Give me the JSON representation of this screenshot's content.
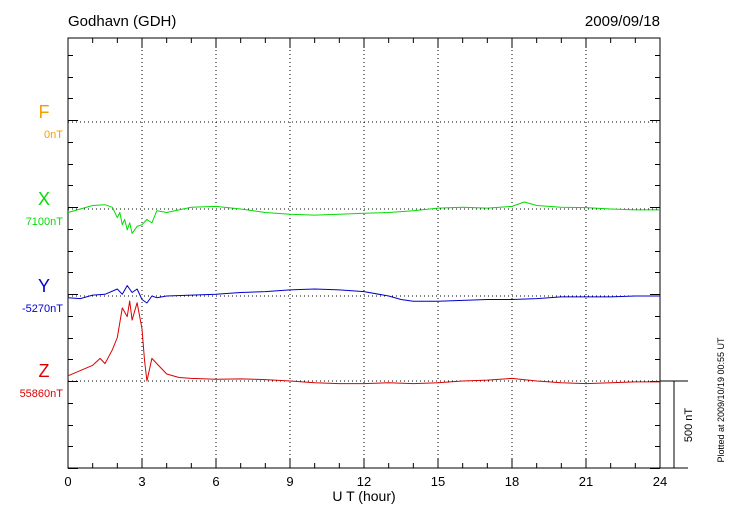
{
  "header": {
    "station": "Godhavn (GDH)",
    "date": "2009/09/18"
  },
  "footer": {
    "plotted": "Plotted at 2009/10/19 00:55 UT"
  },
  "scale": {
    "label": "500 nT",
    "value_nT": 500
  },
  "colors": {
    "F": "#f0a000",
    "X": "#00dd00",
    "Y": "#0000cc",
    "Z": "#dd0000",
    "grid": "#000000"
  },
  "chart_data": {
    "type": "line",
    "xlabel": "U T (hour)",
    "xlim": [
      0,
      24
    ],
    "x_ticks": [
      0,
      3,
      6,
      9,
      12,
      15,
      18,
      21,
      24
    ],
    "x_tick_labels": [
      "0",
      "3",
      "6",
      "9",
      "12",
      "15",
      "18",
      "21",
      "24"
    ],
    "baselines": [
      {
        "component": "F",
        "letter": "F",
        "baseline_label": "0nT"
      },
      {
        "component": "X",
        "letter": "X",
        "baseline_label": "7100nT"
      },
      {
        "component": "Y",
        "letter": "Y",
        "baseline_label": "-5270nT"
      },
      {
        "component": "Z",
        "letter": "Z",
        "baseline_label": "55860nT"
      }
    ],
    "series": [
      {
        "component": "X",
        "x": [
          0,
          0.5,
          1.0,
          1.5,
          1.8,
          2.0,
          2.1,
          2.2,
          2.3,
          2.4,
          2.5,
          2.6,
          2.8,
          3.0,
          3.2,
          3.4,
          3.6,
          4.0,
          5.0,
          6.0,
          7.0,
          8.0,
          9.0,
          10.0,
          11.0,
          12.0,
          13.0,
          14.0,
          15.0,
          16.0,
          17.0,
          18.0,
          18.5,
          19.0,
          20.0,
          21.0,
          22.0,
          23.0,
          24.0
        ],
        "values": [
          -20,
          0,
          20,
          25,
          10,
          -50,
          -20,
          -90,
          -60,
          -120,
          -80,
          -140,
          -100,
          -90,
          -60,
          -80,
          -10,
          -20,
          10,
          15,
          0,
          -20,
          -30,
          -35,
          -30,
          -25,
          -20,
          -10,
          5,
          10,
          5,
          15,
          40,
          20,
          10,
          8,
          0,
          -5,
          -5
        ]
      },
      {
        "component": "Y",
        "x": [
          0,
          0.5,
          1.0,
          1.5,
          2.0,
          2.2,
          2.4,
          2.6,
          2.8,
          3.0,
          3.2,
          3.4,
          3.6,
          4.0,
          5.0,
          6.0,
          7.0,
          8.0,
          9.0,
          10.0,
          11.0,
          12.0,
          13.0,
          13.5,
          14.0,
          15.0,
          16.0,
          17.0,
          18.0,
          19.0,
          20.0,
          21.0,
          22.0,
          23.0,
          24.0
        ],
        "values": [
          -10,
          -15,
          5,
          10,
          40,
          10,
          60,
          20,
          40,
          -20,
          -40,
          0,
          -10,
          0,
          5,
          10,
          20,
          25,
          35,
          40,
          35,
          25,
          0,
          -20,
          -30,
          -30,
          -25,
          -20,
          -20,
          -15,
          -5,
          -5,
          -5,
          0,
          0
        ]
      },
      {
        "component": "Z",
        "x": [
          0,
          0.5,
          1.0,
          1.3,
          1.5,
          1.8,
          2.0,
          2.2,
          2.4,
          2.5,
          2.6,
          2.8,
          3.0,
          3.1,
          3.2,
          3.4,
          3.6,
          4.0,
          4.5,
          5.0,
          6.0,
          7.0,
          8.0,
          9.0,
          10.0,
          11.0,
          12.0,
          13.0,
          14.0,
          15.0,
          16.0,
          17.0,
          18.0,
          19.0,
          20.0,
          21.0,
          22.0,
          23.0,
          24.0
        ],
        "values": [
          30,
          60,
          90,
          130,
          100,
          180,
          250,
          420,
          370,
          460,
          350,
          450,
          300,
          120,
          0,
          130,
          100,
          40,
          20,
          15,
          10,
          12,
          8,
          0,
          -10,
          -15,
          -15,
          -10,
          -15,
          -10,
          0,
          5,
          15,
          0,
          -10,
          -15,
          -10,
          -5,
          -5
        ]
      }
    ]
  }
}
